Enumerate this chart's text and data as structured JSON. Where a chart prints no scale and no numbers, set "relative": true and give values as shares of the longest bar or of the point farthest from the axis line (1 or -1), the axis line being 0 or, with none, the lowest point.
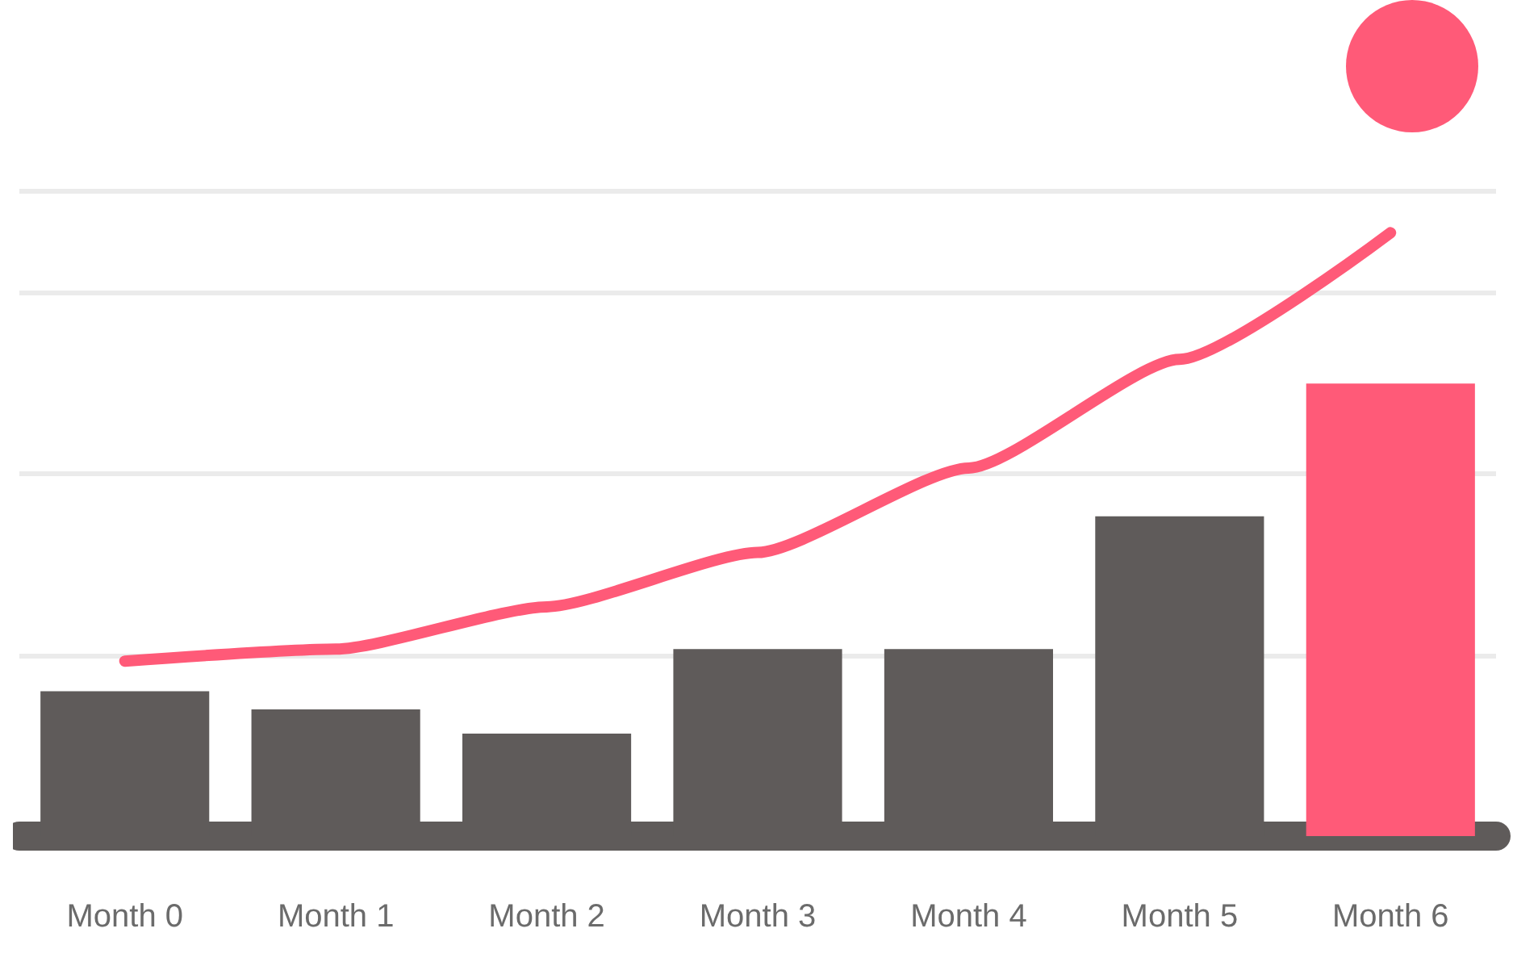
{
  "chart_data": {
    "type": "bar",
    "relative": true,
    "grid": "y",
    "categories": [
      "Month 0",
      "Month 1",
      "Month 2",
      "Month 3",
      "Month 4",
      "Month 5",
      "Month 6"
    ],
    "series": [
      {
        "color": "#5f5b5a",
        "colors": [
          "#5f5b5a",
          "#5f5b5a",
          "#5f5b5a",
          "#5f5b5a",
          "#5f5b5a",
          "#5f5b5a",
          "#ff5a78"
        ],
        "values": [
          0.24,
          0.21,
          0.17,
          0.31,
          0.31,
          0.53,
          0.75
        ]
      },
      {
        "type": "line",
        "color": "#ff5a78",
        "values": [
          0.29,
          0.31,
          0.38,
          0.47,
          0.61,
          0.79,
          1
        ]
      }
    ]
  }
}
